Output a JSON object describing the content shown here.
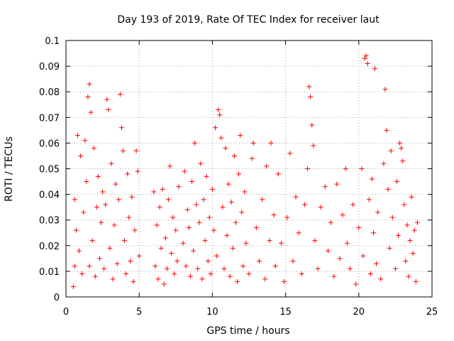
{
  "chart_data": {
    "type": "scatter",
    "title": "Day 193 of 2019, Rate Of TEC Index for receiver laut",
    "xlabel": "GPS time / hours",
    "ylabel": "ROTI / TECUs",
    "xlim": [
      0,
      25
    ],
    "ylim": [
      0,
      0.1
    ],
    "xticks": [
      0,
      5,
      10,
      15,
      20,
      25
    ],
    "xtick_labels": [
      "0",
      "5",
      "10",
      "15",
      "20",
      "25"
    ],
    "yticks": [
      0,
      0.01,
      0.02,
      0.03,
      0.04,
      0.05,
      0.06,
      0.07,
      0.08,
      0.09,
      0.1
    ],
    "ytick_labels": [
      "0",
      "0.01",
      "0.02",
      "0.03",
      "0.04",
      "0.05",
      "0.06",
      "0.07",
      "0.08",
      "0.09",
      "0.1"
    ],
    "grid": true,
    "marker": "+",
    "color": "#ff0000",
    "series": [
      {
        "name": "ROTI",
        "points": [
          [
            0.5,
            0.004
          ],
          [
            0.6,
            0.012
          ],
          [
            0.6,
            0.038
          ],
          [
            0.7,
            0.026
          ],
          [
            0.8,
            0.063
          ],
          [
            0.9,
            0.018
          ],
          [
            1.0,
            0.055
          ],
          [
            1.1,
            0.009
          ],
          [
            1.2,
            0.033
          ],
          [
            1.3,
            0.061
          ],
          [
            1.4,
            0.045
          ],
          [
            1.5,
            0.078
          ],
          [
            1.6,
            0.083
          ],
          [
            1.6,
            0.012
          ],
          [
            1.7,
            0.072
          ],
          [
            1.8,
            0.022
          ],
          [
            1.9,
            0.058
          ],
          [
            2.0,
            0.008
          ],
          [
            2.1,
            0.035
          ],
          [
            2.2,
            0.047
          ],
          [
            2.3,
            0.015
          ],
          [
            2.4,
            0.029
          ],
          [
            2.5,
            0.041
          ],
          [
            2.6,
            0.011
          ],
          [
            2.7,
            0.036
          ],
          [
            2.8,
            0.077
          ],
          [
            2.9,
            0.073
          ],
          [
            3.0,
            0.019
          ],
          [
            3.1,
            0.052
          ],
          [
            3.2,
            0.007
          ],
          [
            3.3,
            0.028
          ],
          [
            3.4,
            0.044
          ],
          [
            3.5,
            0.013
          ],
          [
            3.6,
            0.038
          ],
          [
            3.7,
            0.079
          ],
          [
            3.8,
            0.066
          ],
          [
            3.9,
            0.057
          ],
          [
            4.0,
            0.022
          ],
          [
            4.1,
            0.009
          ],
          [
            4.2,
            0.048
          ],
          [
            4.3,
            0.031
          ],
          [
            4.4,
            0.014
          ],
          [
            4.5,
            0.039
          ],
          [
            4.6,
            0.006
          ],
          [
            4.7,
            0.026
          ],
          [
            4.8,
            0.057
          ],
          [
            4.9,
            0.049
          ],
          [
            5.0,
            0.016
          ],
          [
            6.0,
            0.041
          ],
          [
            6.1,
            0.012
          ],
          [
            6.2,
            0.028
          ],
          [
            6.3,
            0.007
          ],
          [
            6.4,
            0.035
          ],
          [
            6.5,
            0.019
          ],
          [
            6.6,
            0.042
          ],
          [
            6.7,
            0.005
          ],
          [
            6.8,
            0.023
          ],
          [
            6.9,
            0.011
          ],
          [
            7.0,
            0.038
          ],
          [
            7.1,
            0.051
          ],
          [
            7.2,
            0.017
          ],
          [
            7.3,
            0.031
          ],
          [
            7.4,
            0.009
          ],
          [
            7.5,
            0.026
          ],
          [
            7.6,
            0.014
          ],
          [
            7.7,
            0.043
          ],
          [
            8.0,
            0.021
          ],
          [
            8.1,
            0.049
          ],
          [
            8.2,
            0.012
          ],
          [
            8.3,
            0.034
          ],
          [
            8.4,
            0.027
          ],
          [
            8.5,
            0.008
          ],
          [
            8.6,
            0.045
          ],
          [
            8.7,
            0.018
          ],
          [
            8.8,
            0.06
          ],
          [
            8.9,
            0.036
          ],
          [
            9.0,
            0.011
          ],
          [
            9.1,
            0.029
          ],
          [
            9.2,
            0.052
          ],
          [
            9.3,
            0.007
          ],
          [
            9.4,
            0.038
          ],
          [
            9.5,
            0.022
          ],
          [
            9.6,
            0.047
          ],
          [
            9.7,
            0.014
          ],
          [
            9.8,
            0.031
          ],
          [
            9.9,
            0.009
          ],
          [
            10.0,
            0.042
          ],
          [
            10.1,
            0.026
          ],
          [
            10.2,
            0.066
          ],
          [
            10.3,
            0.016
          ],
          [
            10.4,
            0.073
          ],
          [
            10.5,
            0.071
          ],
          [
            10.6,
            0.062
          ],
          [
            10.7,
            0.035
          ],
          [
            10.8,
            0.011
          ],
          [
            10.9,
            0.058
          ],
          [
            11.0,
            0.024
          ],
          [
            11.1,
            0.044
          ],
          [
            11.2,
            0.008
          ],
          [
            11.3,
            0.037
          ],
          [
            11.4,
            0.019
          ],
          [
            11.5,
            0.055
          ],
          [
            11.6,
            0.029
          ],
          [
            11.7,
            0.006
          ],
          [
            11.8,
            0.048
          ],
          [
            11.9,
            0.063
          ],
          [
            12.0,
            0.033
          ],
          [
            12.1,
            0.012
          ],
          [
            12.2,
            0.041
          ],
          [
            12.3,
            0.021
          ],
          [
            12.5,
            0.009
          ],
          [
            12.7,
            0.054
          ],
          [
            12.8,
            0.06
          ],
          [
            13.0,
            0.027
          ],
          [
            13.2,
            0.014
          ],
          [
            13.4,
            0.038
          ],
          [
            13.6,
            0.007
          ],
          [
            13.7,
            0.051
          ],
          [
            13.9,
            0.022
          ],
          [
            14.0,
            0.06
          ],
          [
            14.2,
            0.032
          ],
          [
            14.3,
            0.012
          ],
          [
            14.5,
            0.048
          ],
          [
            14.7,
            0.021
          ],
          [
            14.9,
            0.006
          ],
          [
            15.1,
            0.031
          ],
          [
            15.3,
            0.056
          ],
          [
            15.5,
            0.014
          ],
          [
            15.7,
            0.039
          ],
          [
            15.9,
            0.025
          ],
          [
            16.1,
            0.009
          ],
          [
            16.3,
            0.036
          ],
          [
            16.5,
            0.05
          ],
          [
            16.6,
            0.082
          ],
          [
            16.7,
            0.078
          ],
          [
            16.8,
            0.067
          ],
          [
            16.9,
            0.059
          ],
          [
            17.0,
            0.022
          ],
          [
            17.2,
            0.011
          ],
          [
            17.4,
            0.035
          ],
          [
            17.7,
            0.043
          ],
          [
            17.9,
            0.018
          ],
          [
            18.1,
            0.029
          ],
          [
            18.3,
            0.008
          ],
          [
            18.5,
            0.044
          ],
          [
            18.7,
            0.015
          ],
          [
            18.9,
            0.032
          ],
          [
            19.1,
            0.05
          ],
          [
            19.2,
            0.021
          ],
          [
            19.4,
            0.011
          ],
          [
            19.6,
            0.036
          ],
          [
            19.8,
            0.005
          ],
          [
            20.0,
            0.027
          ],
          [
            20.2,
            0.05
          ],
          [
            20.3,
            0.016
          ],
          [
            20.4,
            0.093
          ],
          [
            20.5,
            0.094
          ],
          [
            20.6,
            0.091
          ],
          [
            20.7,
            0.038
          ],
          [
            20.8,
            0.009
          ],
          [
            20.9,
            0.046
          ],
          [
            21.0,
            0.025
          ],
          [
            21.1,
            0.089
          ],
          [
            21.2,
            0.013
          ],
          [
            21.3,
            0.033
          ],
          [
            21.5,
            0.007
          ],
          [
            21.7,
            0.052
          ],
          [
            21.8,
            0.081
          ],
          [
            21.9,
            0.065
          ],
          [
            22.0,
            0.042
          ],
          [
            22.1,
            0.019
          ],
          [
            22.2,
            0.057
          ],
          [
            22.3,
            0.031
          ],
          [
            22.5,
            0.011
          ],
          [
            22.6,
            0.045
          ],
          [
            22.7,
            0.024
          ],
          [
            22.8,
            0.06
          ],
          [
            22.9,
            0.058
          ],
          [
            23.0,
            0.053
          ],
          [
            23.1,
            0.036
          ],
          [
            23.2,
            0.014
          ],
          [
            23.3,
            0.028
          ],
          [
            23.4,
            0.008
          ],
          [
            23.5,
            0.022
          ],
          [
            23.6,
            0.039
          ],
          [
            23.7,
            0.017
          ],
          [
            23.8,
            0.026
          ],
          [
            23.9,
            0.006
          ],
          [
            24.0,
            0.029
          ]
        ]
      }
    ]
  }
}
